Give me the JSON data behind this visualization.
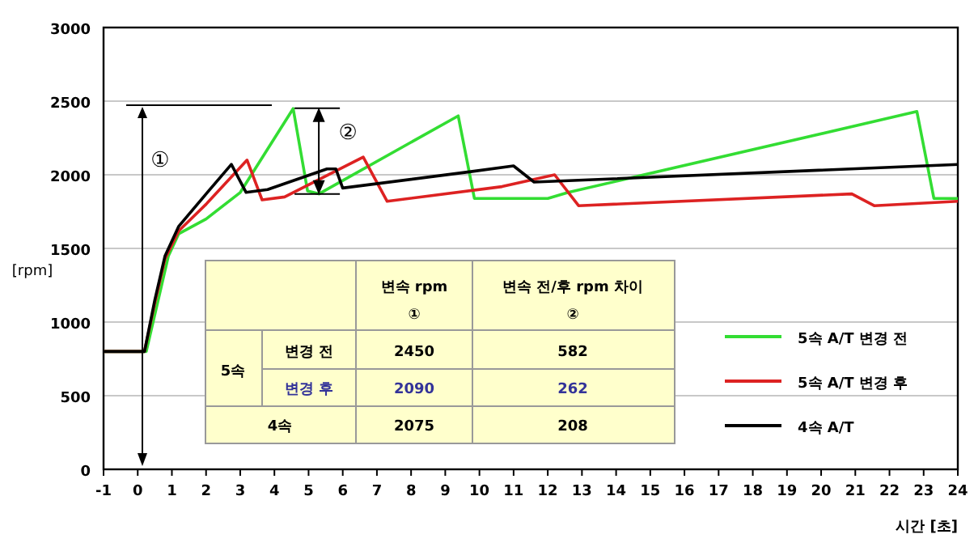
{
  "chart_data": {
    "type": "line",
    "xlabel": "시간 [초]",
    "ylabel": "[rpm]",
    "xlim": [
      -1,
      24
    ],
    "xticks": [
      -1,
      0,
      1,
      2,
      3,
      4,
      5,
      6,
      7,
      8,
      9,
      10,
      11,
      12,
      13,
      14,
      15,
      16,
      17,
      18,
      19,
      20,
      21,
      22,
      23,
      24
    ],
    "ylim": [
      0,
      3000
    ],
    "yticks": [
      0,
      500,
      1000,
      1500,
      2000,
      2500,
      3000
    ],
    "grid": "y",
    "legend": "right",
    "series": [
      {
        "name": "5속 A/T 변경 전",
        "color": "#33dd33",
        "x": [
          -1,
          0.25,
          0.6,
          0.9,
          1.2,
          2,
          3,
          4.55,
          4.97,
          5.3,
          9.38,
          9.85,
          12,
          12.6,
          22.8,
          23.3,
          24
        ],
        "values": [
          800,
          800,
          1150,
          1450,
          1600,
          1700,
          1880,
          2450,
          1890,
          1870,
          2400,
          1840,
          1840,
          1880,
          2430,
          1840,
          1840
        ]
      },
      {
        "name": "5속 A/T 변경 후",
        "color": "#dd2222",
        "x": [
          -1,
          0.2,
          0.5,
          0.8,
          1.2,
          2,
          3.2,
          3.64,
          4.3,
          6.6,
          7.3,
          10.66,
          12.2,
          12.9,
          20.9,
          21.55,
          24
        ],
        "values": [
          800,
          800,
          1130,
          1430,
          1620,
          1800,
          2100,
          1830,
          1850,
          2120,
          1820,
          1920,
          2000,
          1790,
          1870,
          1790,
          1820
        ]
      },
      {
        "name": "4속 A/T",
        "color": "#000000",
        "x": [
          -1,
          0.2,
          0.5,
          0.8,
          1.2,
          2,
          2.74,
          3.17,
          3.8,
          5.54,
          5.8,
          6.0,
          9.7,
          11.0,
          11.6,
          24
        ],
        "values": [
          800,
          800,
          1150,
          1450,
          1650,
          1870,
          2070,
          1880,
          1900,
          2040,
          2040,
          1910,
          2020,
          2060,
          1950,
          2070
        ]
      }
    ],
    "annotations": [
      "①",
      {
        "text": "②",
        "x": 5.3,
        "y": 1870
      },
      "변속 rpm",
      "①",
      "변속 전/후 rpm 차이",
      "②",
      "5속",
      "변경 전",
      "2450",
      "582",
      "변경 후",
      "2090",
      "262",
      "4속",
      "2075",
      "208"
    ]
  }
}
